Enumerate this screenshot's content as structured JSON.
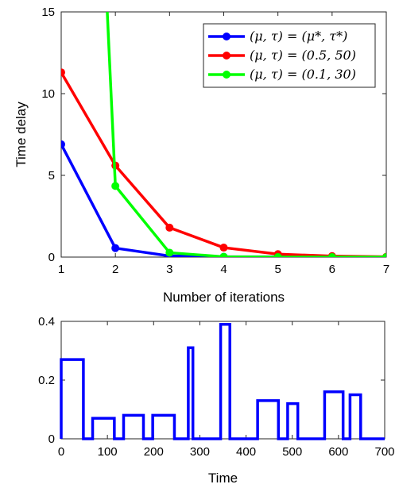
{
  "chart_data": [
    {
      "type": "line",
      "xlabel": "Number of iterations",
      "ylabel": "Time delay",
      "xlim": [
        1,
        7
      ],
      "ylim": [
        0,
        15
      ],
      "xticks": [
        "1",
        "2",
        "3",
        "4",
        "5",
        "6",
        "7"
      ],
      "yticks": [
        "0",
        "5",
        "10",
        "15"
      ],
      "grid": false,
      "legend_position": "top-right",
      "series": [
        {
          "name": "(μ, τ) = (μ*, τ*)",
          "color": "#0000ff",
          "x": [
            1,
            2,
            3,
            4,
            5,
            6,
            7
          ],
          "y": [
            6.9,
            0.55,
            0.07,
            0.02,
            0.01,
            0.0,
            0.0
          ]
        },
        {
          "name": "(μ, τ) = (0.5, 50)",
          "color": "#ff0000",
          "x": [
            1,
            2,
            3,
            4,
            5,
            6,
            7
          ],
          "y": [
            11.3,
            5.6,
            1.8,
            0.58,
            0.18,
            0.06,
            0.02
          ]
        },
        {
          "name": "(μ, τ) = (0.1, 30)",
          "color": "#00ff00",
          "x": [
            1.85,
            2,
            3,
            4,
            5,
            6,
            7
          ],
          "y": [
            15,
            4.35,
            0.27,
            0.02,
            0.0,
            0.0,
            0.0
          ]
        }
      ]
    },
    {
      "type": "line",
      "xlabel": "Time",
      "ylabel": "",
      "xlim": [
        0,
        700
      ],
      "ylim": [
        0,
        0.4
      ],
      "xticks": [
        "0",
        "100",
        "200",
        "300",
        "400",
        "500",
        "600",
        "700"
      ],
      "yticks": [
        "0",
        "0.2",
        "0.4"
      ],
      "grid": false,
      "series": [
        {
          "color": "#0000ff",
          "x": [
            0,
            0,
            48,
            48,
            68,
            68,
            115,
            115,
            135,
            135,
            178,
            178,
            198,
            198,
            245,
            245,
            275,
            275,
            285,
            285,
            295,
            295,
            345,
            345,
            365,
            365,
            410,
            410,
            425,
            425,
            470,
            470,
            490,
            490,
            512,
            512,
            555,
            555,
            570,
            570,
            610,
            610,
            625,
            625,
            648,
            648,
            700
          ],
          "y": [
            0,
            0.27,
            0.27,
            0,
            0,
            0.07,
            0.07,
            0,
            0,
            0.08,
            0.08,
            0,
            0,
            0.08,
            0.08,
            0,
            0,
            0.31,
            0.31,
            0,
            0,
            0,
            0,
            0.39,
            0.39,
            0,
            0,
            0,
            0,
            0.13,
            0.13,
            0,
            0,
            0.12,
            0.12,
            0,
            0,
            0,
            0,
            0.16,
            0.16,
            0,
            0,
            0.15,
            0.15,
            0,
            0
          ]
        }
      ]
    }
  ]
}
